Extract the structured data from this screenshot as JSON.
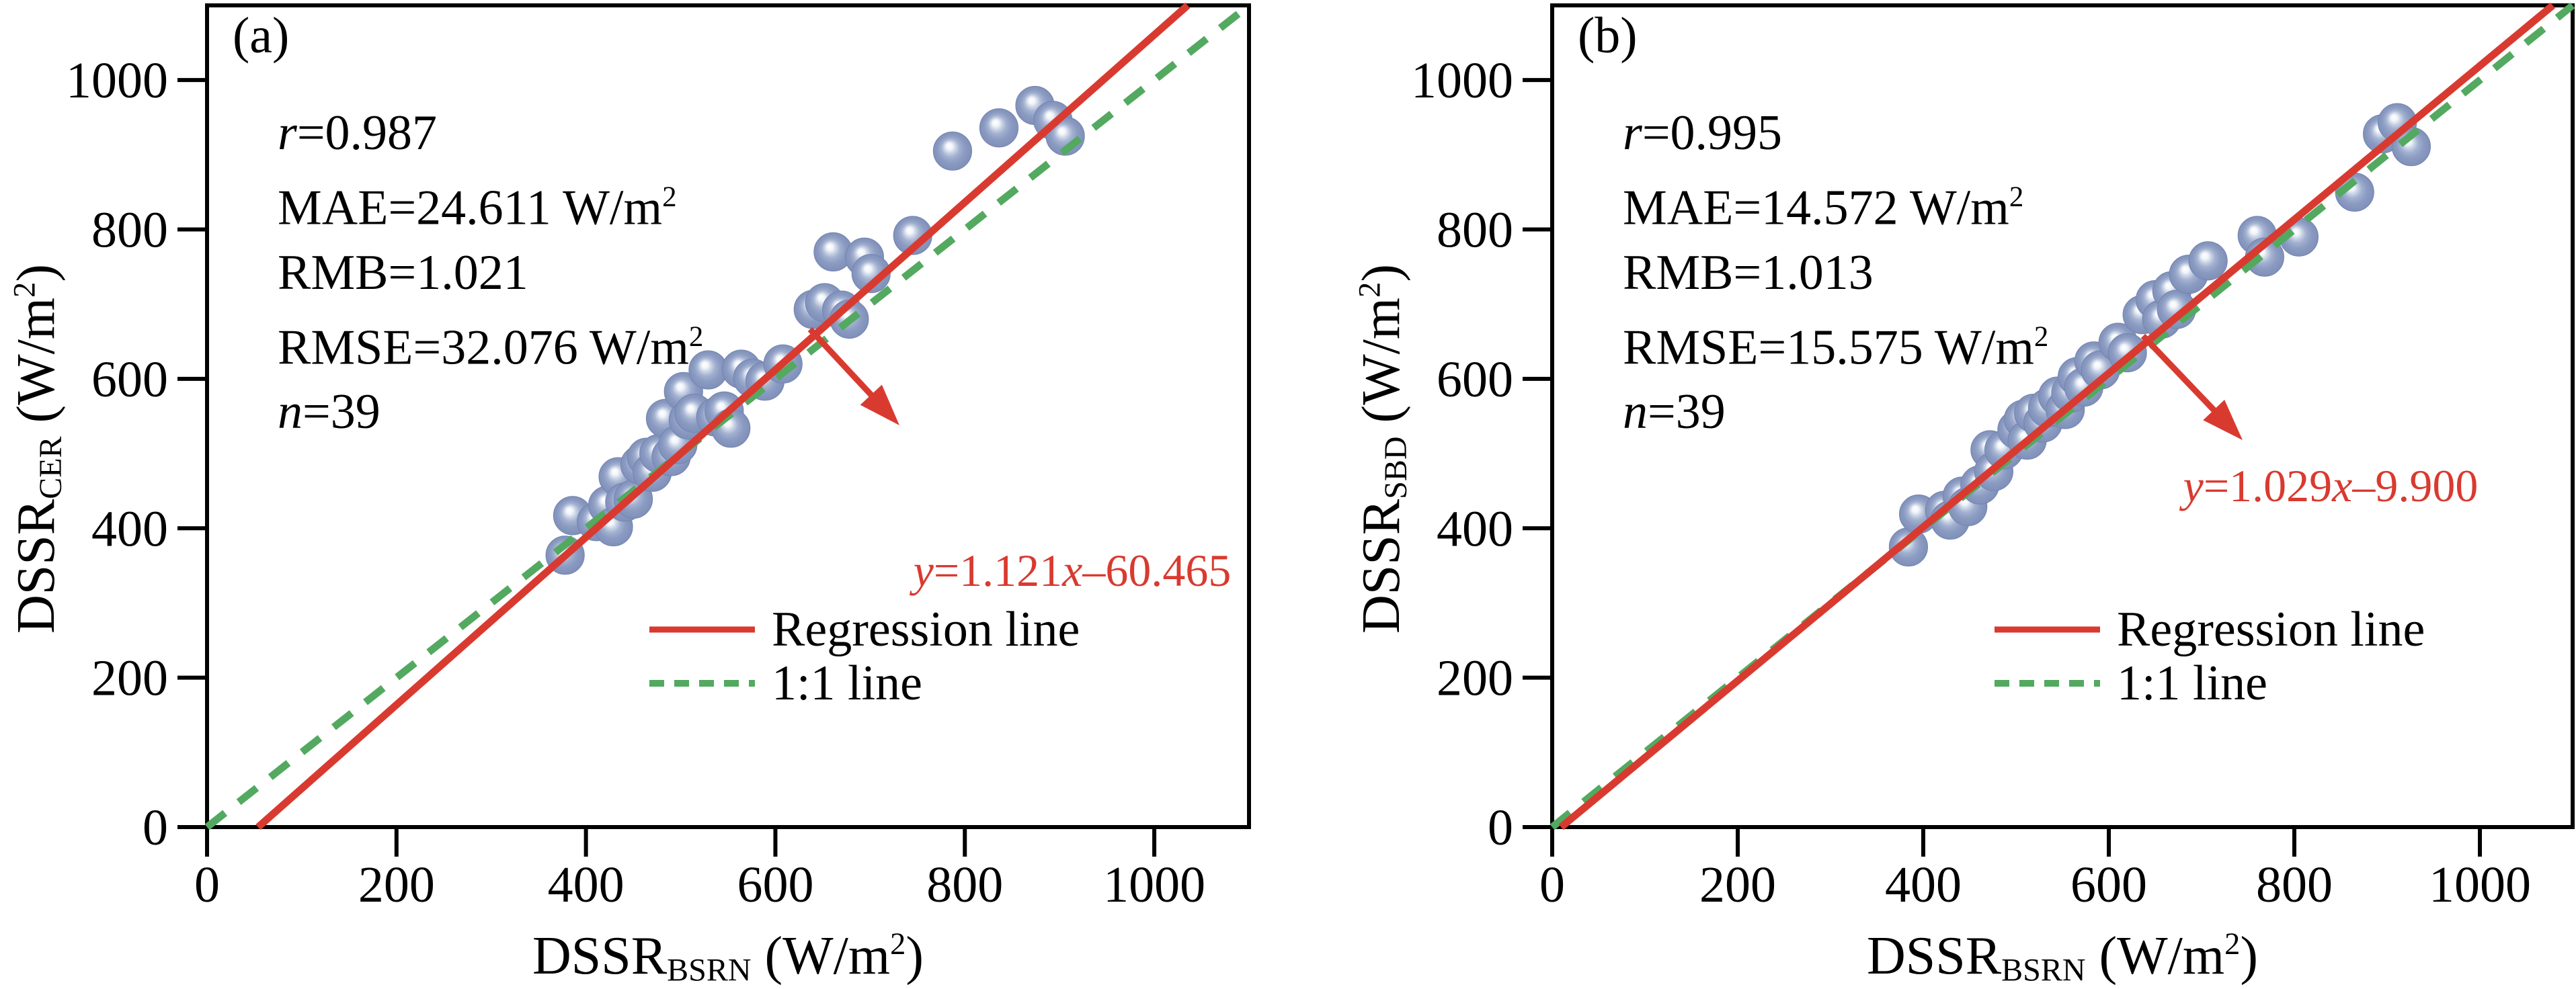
{
  "page": {
    "background": "#ffffff"
  },
  "colors": {
    "axis": "#000000",
    "text": "#000000",
    "regression_line": "#d93a30",
    "one_to_one_line": "#53a960",
    "equation_text": "#d93a30",
    "marker_body": "#8495bd",
    "marker_edge": "#7787b2",
    "marker_highlight": "#ffffff"
  },
  "chart_data": [
    {
      "type": "scatter",
      "panel": "a",
      "tag": "(a)",
      "xlabel": "DSSR_BSRN (W/m2)",
      "ylabel": "DSSR_CER (W/m2)",
      "xlabel_segments": [
        {
          "t": "DSSR"
        },
        {
          "t": "BSRN",
          "s": "sub"
        },
        {
          "t": " (W/m"
        },
        {
          "t": "2",
          "s": "sup"
        },
        {
          "t": ")"
        }
      ],
      "ylabel_segments": [
        {
          "t": "DSSR"
        },
        {
          "t": "CER",
          "s": "sub"
        },
        {
          "t": " (W/m"
        },
        {
          "t": "2",
          "s": "sup"
        },
        {
          "t": ")"
        }
      ],
      "xlim": [
        0,
        1100
      ],
      "ylim": [
        0,
        1100
      ],
      "xticks": [
        0,
        200,
        400,
        600,
        800,
        1000
      ],
      "yticks": [
        0,
        200,
        400,
        600,
        800,
        1000
      ],
      "grid": false,
      "stats": {
        "r": 0.987,
        "MAE": "24.611 W/m2",
        "RMB": 1.021,
        "RMSE": "32.076 W/m2",
        "n": 39
      },
      "stats_lines": [
        [
          {
            "t": "r",
            "s": "i"
          },
          {
            "t": "=0.987"
          }
        ],
        [
          {
            "t": "MAE=24.611 W/m"
          },
          {
            "t": "2",
            "s": "sup"
          }
        ],
        [
          {
            "t": "RMB=1.021"
          }
        ],
        [
          {
            "t": "RMSE=32.076 W/m"
          },
          {
            "t": "2",
            "s": "sup"
          }
        ],
        [
          {
            "t": "n",
            "s": "i"
          },
          {
            "t": "=39"
          }
        ]
      ],
      "regression": {
        "slope": 1.121,
        "intercept": -60.465,
        "equation": "y=1.121x–60.465"
      },
      "equation_segments": [
        {
          "t": "y",
          "s": "i"
        },
        {
          "t": "=1.121"
        },
        {
          "t": "x",
          "s": "i"
        },
        {
          "t": "–60.465"
        }
      ],
      "one_to_one": true,
      "legend": [
        {
          "label": "Regression line",
          "style": "regression"
        },
        {
          "label": "1:1 line",
          "style": "one2one"
        }
      ],
      "points": [
        [
          378,
          364
        ],
        [
          386,
          417
        ],
        [
          411,
          409
        ],
        [
          423,
          431
        ],
        [
          429,
          402
        ],
        [
          434,
          469
        ],
        [
          441,
          435
        ],
        [
          450,
          439
        ],
        [
          457,
          485
        ],
        [
          464,
          495
        ],
        [
          470,
          475
        ],
        [
          477,
          500
        ],
        [
          484,
          547
        ],
        [
          490,
          496
        ],
        [
          497,
          512
        ],
        [
          503,
          583
        ],
        [
          508,
          545
        ],
        [
          514,
          554
        ],
        [
          529,
          612
        ],
        [
          537,
          549
        ],
        [
          546,
          557
        ],
        [
          553,
          534
        ],
        [
          564,
          613
        ],
        [
          576,
          601
        ],
        [
          589,
          597
        ],
        [
          608,
          620
        ],
        [
          640,
          693
        ],
        [
          652,
          702
        ],
        [
          661,
          770
        ],
        [
          670,
          692
        ],
        [
          678,
          680
        ],
        [
          694,
          763
        ],
        [
          701,
          741
        ],
        [
          745,
          792
        ],
        [
          787,
          905
        ],
        [
          836,
          936
        ],
        [
          874,
          966
        ],
        [
          893,
          946
        ],
        [
          906,
          925
        ]
      ]
    },
    {
      "type": "scatter",
      "panel": "b",
      "tag": "(b)",
      "xlabel": "DSSR_BSRN (W/m2)",
      "ylabel": "DSSR_SBD (W/m2)",
      "xlabel_segments": [
        {
          "t": "DSSR"
        },
        {
          "t": "BSRN",
          "s": "sub"
        },
        {
          "t": " (W/m"
        },
        {
          "t": "2",
          "s": "sup"
        },
        {
          "t": ")"
        }
      ],
      "ylabel_segments": [
        {
          "t": "DSSR"
        },
        {
          "t": "SBD",
          "s": "sub"
        },
        {
          "t": " (W/m"
        },
        {
          "t": "2",
          "s": "sup"
        },
        {
          "t": ")"
        }
      ],
      "xlim": [
        0,
        1100
      ],
      "ylim": [
        0,
        1100
      ],
      "xticks": [
        0,
        200,
        400,
        600,
        800,
        1000
      ],
      "yticks": [
        0,
        200,
        400,
        600,
        800,
        1000
      ],
      "grid": false,
      "stats": {
        "r": 0.995,
        "MAE": "14.572 W/m2",
        "RMB": 1.013,
        "RMSE": "15.575 W/m2",
        "n": 39
      },
      "stats_lines": [
        [
          {
            "t": "r",
            "s": "i"
          },
          {
            "t": "=0.995"
          }
        ],
        [
          {
            "t": "MAE=14.572 W/m"
          },
          {
            "t": "2",
            "s": "sup"
          }
        ],
        [
          {
            "t": "RMB=1.013"
          }
        ],
        [
          {
            "t": "RMSE=15.575 W/m"
          },
          {
            "t": "2",
            "s": "sup"
          }
        ],
        [
          {
            "t": "n",
            "s": "i"
          },
          {
            "t": "=39"
          }
        ]
      ],
      "regression": {
        "slope": 1.029,
        "intercept": -9.9,
        "equation": "y=1.029x–9.900"
      },
      "equation_segments": [
        {
          "t": "y",
          "s": "i"
        },
        {
          "t": "=1.029"
        },
        {
          "t": "x",
          "s": "i"
        },
        {
          "t": "–9.900"
        }
      ],
      "one_to_one": true,
      "legend": [
        {
          "label": "Regression line",
          "style": "regression"
        },
        {
          "label": "1:1 line",
          "style": "one2one"
        }
      ],
      "points": [
        [
          384,
          375
        ],
        [
          395,
          419
        ],
        [
          423,
          424
        ],
        [
          429,
          411
        ],
        [
          442,
          443
        ],
        [
          448,
          429
        ],
        [
          461,
          458
        ],
        [
          472,
          505
        ],
        [
          476,
          476
        ],
        [
          487,
          505
        ],
        [
          501,
          532
        ],
        [
          508,
          546
        ],
        [
          512,
          518
        ],
        [
          519,
          554
        ],
        [
          529,
          541
        ],
        [
          534,
          561
        ],
        [
          545,
          577
        ],
        [
          553,
          559
        ],
        [
          559,
          581
        ],
        [
          566,
          603
        ],
        [
          573,
          589
        ],
        [
          584,
          624
        ],
        [
          591,
          612
        ],
        [
          610,
          649
        ],
        [
          620,
          635
        ],
        [
          636,
          686
        ],
        [
          650,
          706
        ],
        [
          657,
          680
        ],
        [
          668,
          718
        ],
        [
          673,
          693
        ],
        [
          686,
          740
        ],
        [
          707,
          758
        ],
        [
          760,
          792
        ],
        [
          768,
          763
        ],
        [
          805,
          790
        ],
        [
          865,
          850
        ],
        [
          895,
          928
        ],
        [
          911,
          943
        ],
        [
          926,
          911
        ]
      ]
    }
  ]
}
